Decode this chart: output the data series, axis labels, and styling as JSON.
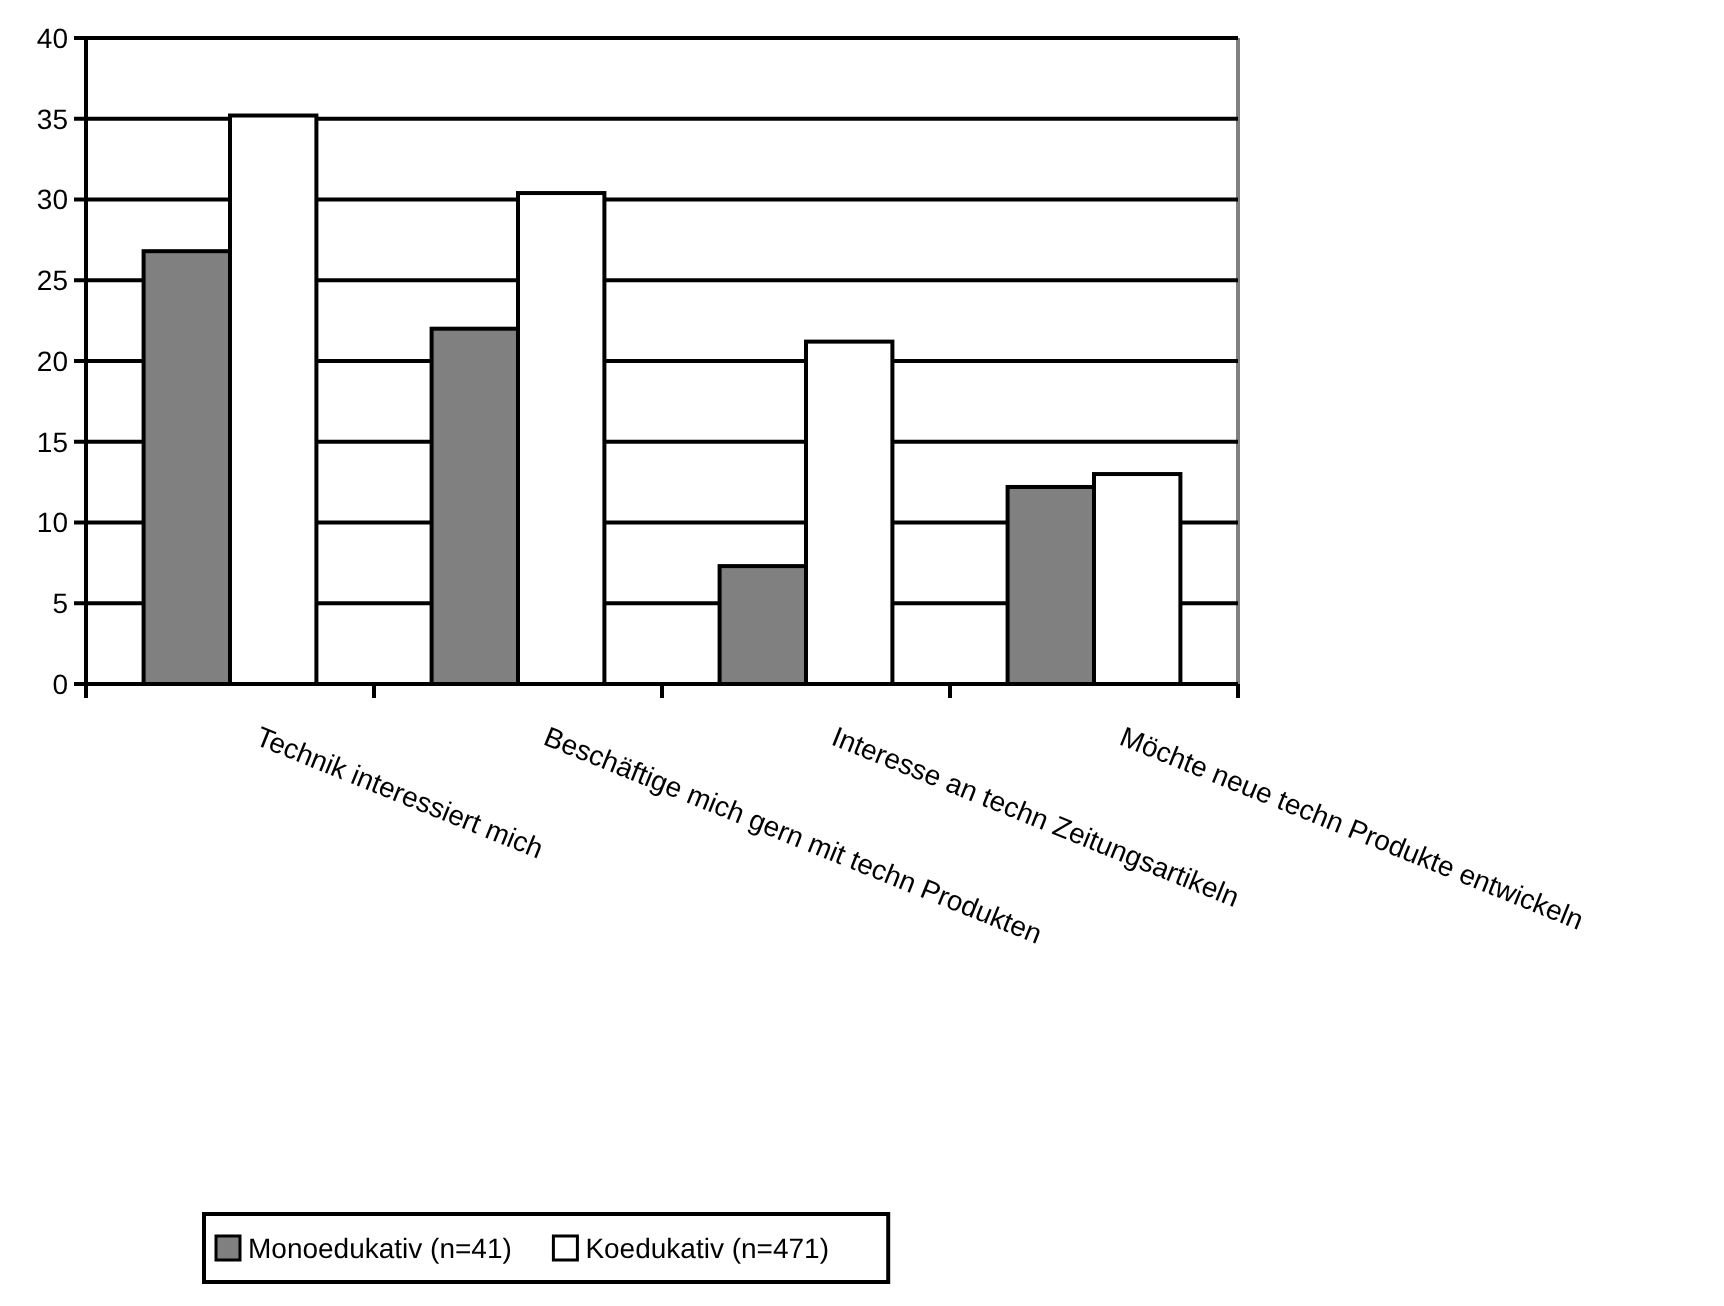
{
  "chart_data": {
    "type": "bar",
    "categories": [
      "Technik interessiert mich",
      "Beschäftige mich gern mit techn Produkten",
      "Interesse an techn Zeitungsartikeln",
      "Möchte neue techn Produkte entwickeln"
    ],
    "series": [
      {
        "name": "Monoedukativ (n=41)",
        "color": "#808080",
        "values": [
          26.8,
          22.0,
          7.3,
          12.2
        ]
      },
      {
        "name": "Koedukativ (n=471)",
        "color": "#ffffff",
        "values": [
          35.2,
          30.4,
          21.2,
          13.0
        ]
      }
    ],
    "ylim": [
      0,
      40
    ],
    "yticks": [
      0,
      5,
      10,
      15,
      20,
      25,
      30,
      35,
      40
    ],
    "grid": "y",
    "legend": "bottom"
  }
}
